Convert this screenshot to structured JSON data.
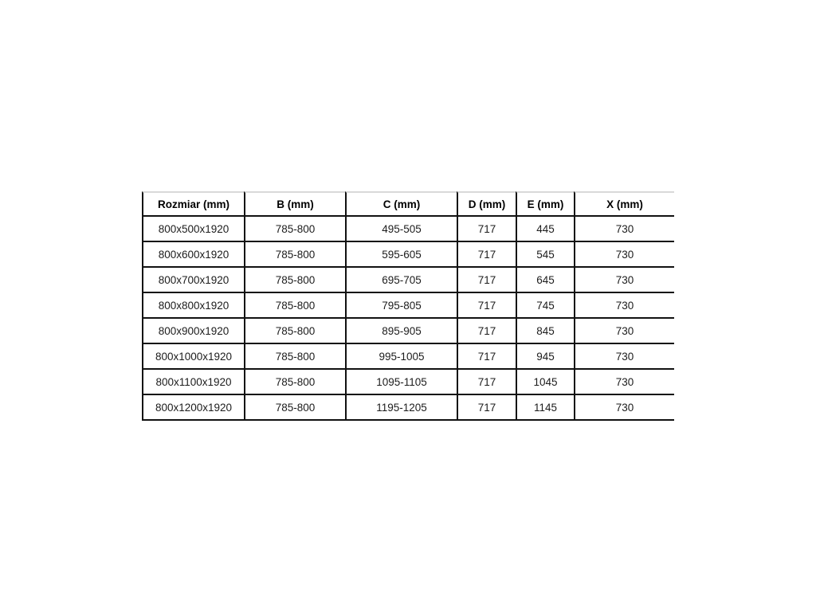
{
  "chart_data": {
    "type": "table",
    "title": "",
    "headers": [
      "Rozmiar (mm)",
      "B (mm)",
      "C (mm)",
      "D (mm)",
      "E (mm)",
      "X (mm)"
    ],
    "rows": [
      [
        "800x500x1920",
        "785-800",
        "495-505",
        "717",
        "445",
        "730"
      ],
      [
        "800x600x1920",
        "785-800",
        "595-605",
        "717",
        "545",
        "730"
      ],
      [
        "800x700x1920",
        "785-800",
        "695-705",
        "717",
        "645",
        "730"
      ],
      [
        "800x800x1920",
        "785-800",
        "795-805",
        "717",
        "745",
        "730"
      ],
      [
        "800x900x1920",
        "785-800",
        "895-905",
        "717",
        "845",
        "730"
      ],
      [
        "800x1000x1920",
        "785-800",
        "995-1005",
        "717",
        "945",
        "730"
      ],
      [
        "800x1100x1920",
        "785-800",
        "1095-1105",
        "717",
        "1045",
        "730"
      ],
      [
        "800x1200x1920",
        "785-800",
        "1195-1205",
        "717",
        "1145",
        "730"
      ]
    ],
    "colors": {
      "border": "#111111",
      "top_border": "#d9d9d9",
      "text": "#1c1c1c",
      "header_text": "#000000",
      "background": "#ffffff"
    }
  }
}
